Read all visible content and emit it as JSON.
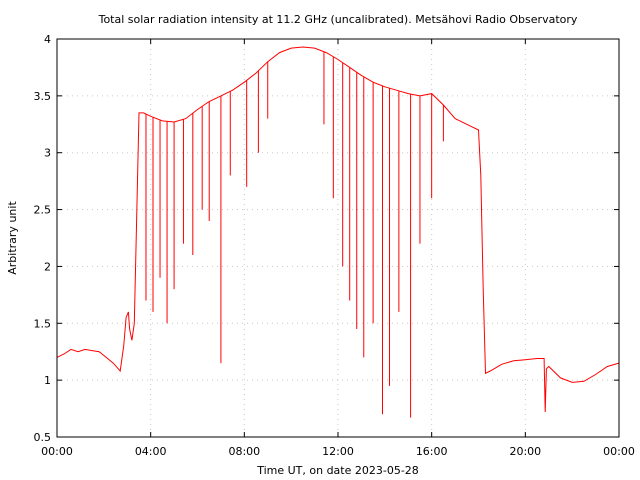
{
  "chart_data": {
    "type": "line",
    "title": "Total solar radiation intensity at 11.2 GHz (uncalibrated). Metsähovi Radio Observatory",
    "xlabel": "Time UT, on date 2023-05-28",
    "ylabel": "Arbitrary unit",
    "xlim": [
      0,
      24
    ],
    "ylim": [
      0.5,
      4
    ],
    "x_tick_values": [
      0,
      4,
      8,
      12,
      16,
      20,
      24
    ],
    "x_tick_labels": [
      "00:00",
      "04:00",
      "08:00",
      "12:00",
      "16:00",
      "20:00",
      "00:00"
    ],
    "y_tick_values": [
      0.5,
      1,
      1.5,
      2,
      2.5,
      3,
      3.5,
      4
    ],
    "y_tick_labels": [
      "0.5",
      "1",
      "1.5",
      "2",
      "2.5",
      "3",
      "3.5",
      "4"
    ],
    "grid": true,
    "line_color": "#ff0000",
    "series": [
      {
        "x": [
          0.0,
          0.3,
          0.6,
          0.9,
          1.2,
          1.5,
          1.8,
          2.1,
          2.4,
          2.7,
          2.85,
          2.95,
          3.05,
          3.1,
          3.2,
          3.3,
          3.4,
          3.5,
          3.7,
          4.0,
          4.5,
          5.0,
          5.5,
          6.0,
          6.5,
          7.0,
          7.5,
          8.0,
          8.5,
          9.0,
          9.5,
          10.0,
          10.5,
          11.0,
          11.5,
          12.0,
          12.5,
          13.0,
          13.5,
          14.0,
          14.5,
          15.0,
          15.5,
          16.0,
          16.5,
          17.0,
          17.5,
          18.0,
          18.1,
          18.2,
          18.3,
          18.5,
          19.0,
          19.5,
          20.0,
          20.5,
          20.8,
          20.85,
          20.9,
          21.0,
          21.5,
          22.0,
          22.5,
          23.0,
          23.5,
          24.0
        ],
        "y": [
          1.2,
          1.23,
          1.27,
          1.25,
          1.27,
          1.26,
          1.25,
          1.2,
          1.15,
          1.08,
          1.3,
          1.55,
          1.6,
          1.45,
          1.35,
          1.5,
          2.4,
          3.35,
          3.35,
          3.32,
          3.28,
          3.27,
          3.3,
          3.38,
          3.45,
          3.5,
          3.55,
          3.62,
          3.7,
          3.8,
          3.88,
          3.92,
          3.93,
          3.92,
          3.88,
          3.82,
          3.75,
          3.68,
          3.62,
          3.58,
          3.55,
          3.52,
          3.5,
          3.52,
          3.42,
          3.3,
          3.25,
          3.2,
          2.8,
          1.8,
          1.06,
          1.08,
          1.14,
          1.17,
          1.18,
          1.19,
          1.19,
          0.72,
          1.1,
          1.12,
          1.02,
          0.98,
          0.99,
          1.05,
          1.12,
          1.15
        ]
      }
    ],
    "dips": [
      {
        "x": 3.8,
        "y": 1.7
      },
      {
        "x": 4.1,
        "y": 1.6
      },
      {
        "x": 4.4,
        "y": 1.9
      },
      {
        "x": 4.7,
        "y": 1.5
      },
      {
        "x": 5.0,
        "y": 1.8
      },
      {
        "x": 5.4,
        "y": 2.2
      },
      {
        "x": 5.8,
        "y": 2.1
      },
      {
        "x": 6.2,
        "y": 2.5
      },
      {
        "x": 6.5,
        "y": 2.4
      },
      {
        "x": 7.0,
        "y": 1.15
      },
      {
        "x": 7.4,
        "y": 2.8
      },
      {
        "x": 8.1,
        "y": 2.7
      },
      {
        "x": 8.6,
        "y": 3.0
      },
      {
        "x": 9.0,
        "y": 3.3
      },
      {
        "x": 11.4,
        "y": 3.25
      },
      {
        "x": 11.8,
        "y": 2.6
      },
      {
        "x": 12.2,
        "y": 2.0
      },
      {
        "x": 12.5,
        "y": 1.7
      },
      {
        "x": 12.8,
        "y": 1.45
      },
      {
        "x": 13.1,
        "y": 1.2
      },
      {
        "x": 13.5,
        "y": 1.5
      },
      {
        "x": 13.9,
        "y": 0.7
      },
      {
        "x": 14.2,
        "y": 0.95
      },
      {
        "x": 14.6,
        "y": 1.6
      },
      {
        "x": 15.1,
        "y": 0.67
      },
      {
        "x": 15.5,
        "y": 2.2
      },
      {
        "x": 16.0,
        "y": 2.6
      },
      {
        "x": 16.5,
        "y": 3.1
      }
    ]
  }
}
